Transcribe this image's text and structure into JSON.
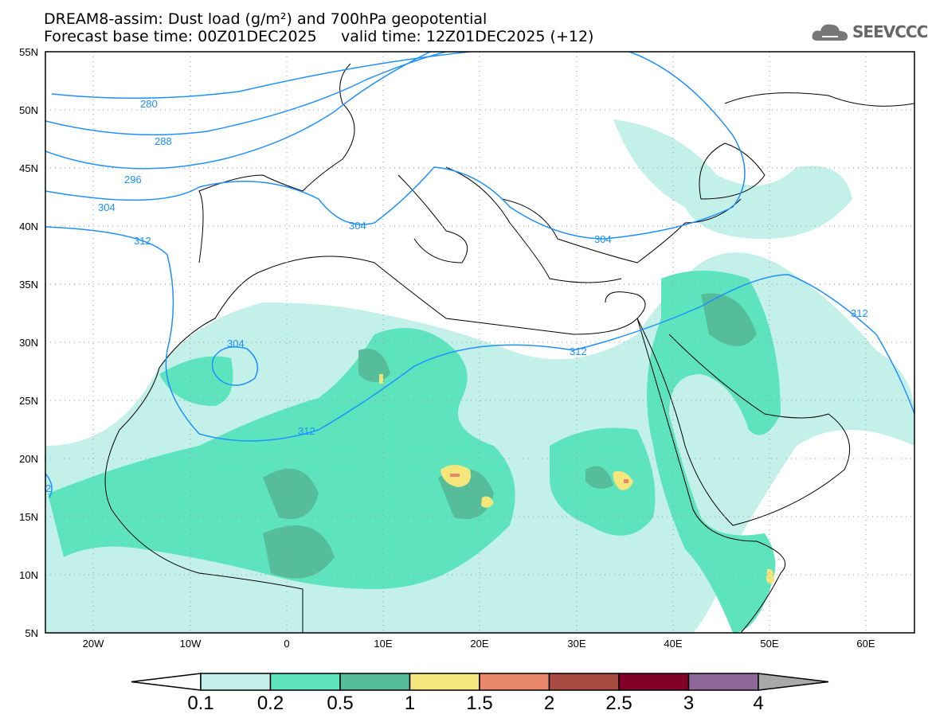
{
  "header": {
    "title_line1": "DREAM8-assim: Dust load (g/m²) and 700hPa geopotential",
    "title_line2": "Forecast base time: 00Z01DEC2025     valid time: 12Z01DEC2025 (+12)"
  },
  "logo": {
    "text": "SEEVCCC",
    "icon": "cloud-icon"
  },
  "map": {
    "lat_labels": [
      "55N",
      "50N",
      "45N",
      "40N",
      "35N",
      "30N",
      "25N",
      "20N",
      "15N",
      "10N",
      "5N"
    ],
    "lon_labels": [
      "20W",
      "10W",
      "0",
      "10E",
      "20E",
      "30E",
      "40E",
      "50E",
      "60E"
    ],
    "contour_labels": [
      "280",
      "288",
      "296",
      "304",
      "304",
      "304",
      "304",
      "312",
      "312",
      "312",
      "312",
      "2"
    ],
    "contour_color": "#1e90ff"
  },
  "colorbar": {
    "labels": [
      "0.1",
      "0.2",
      "0.5",
      "1",
      "1.5",
      "2",
      "2.5",
      "3",
      "4"
    ],
    "colors": [
      "#ffffff",
      "#c3f1ea",
      "#5de4bd",
      "#55bd9a",
      "#f5e67b",
      "#e9876a",
      "#a84a40",
      "#830029",
      "#8d6898",
      "#a9a9a9"
    ]
  }
}
